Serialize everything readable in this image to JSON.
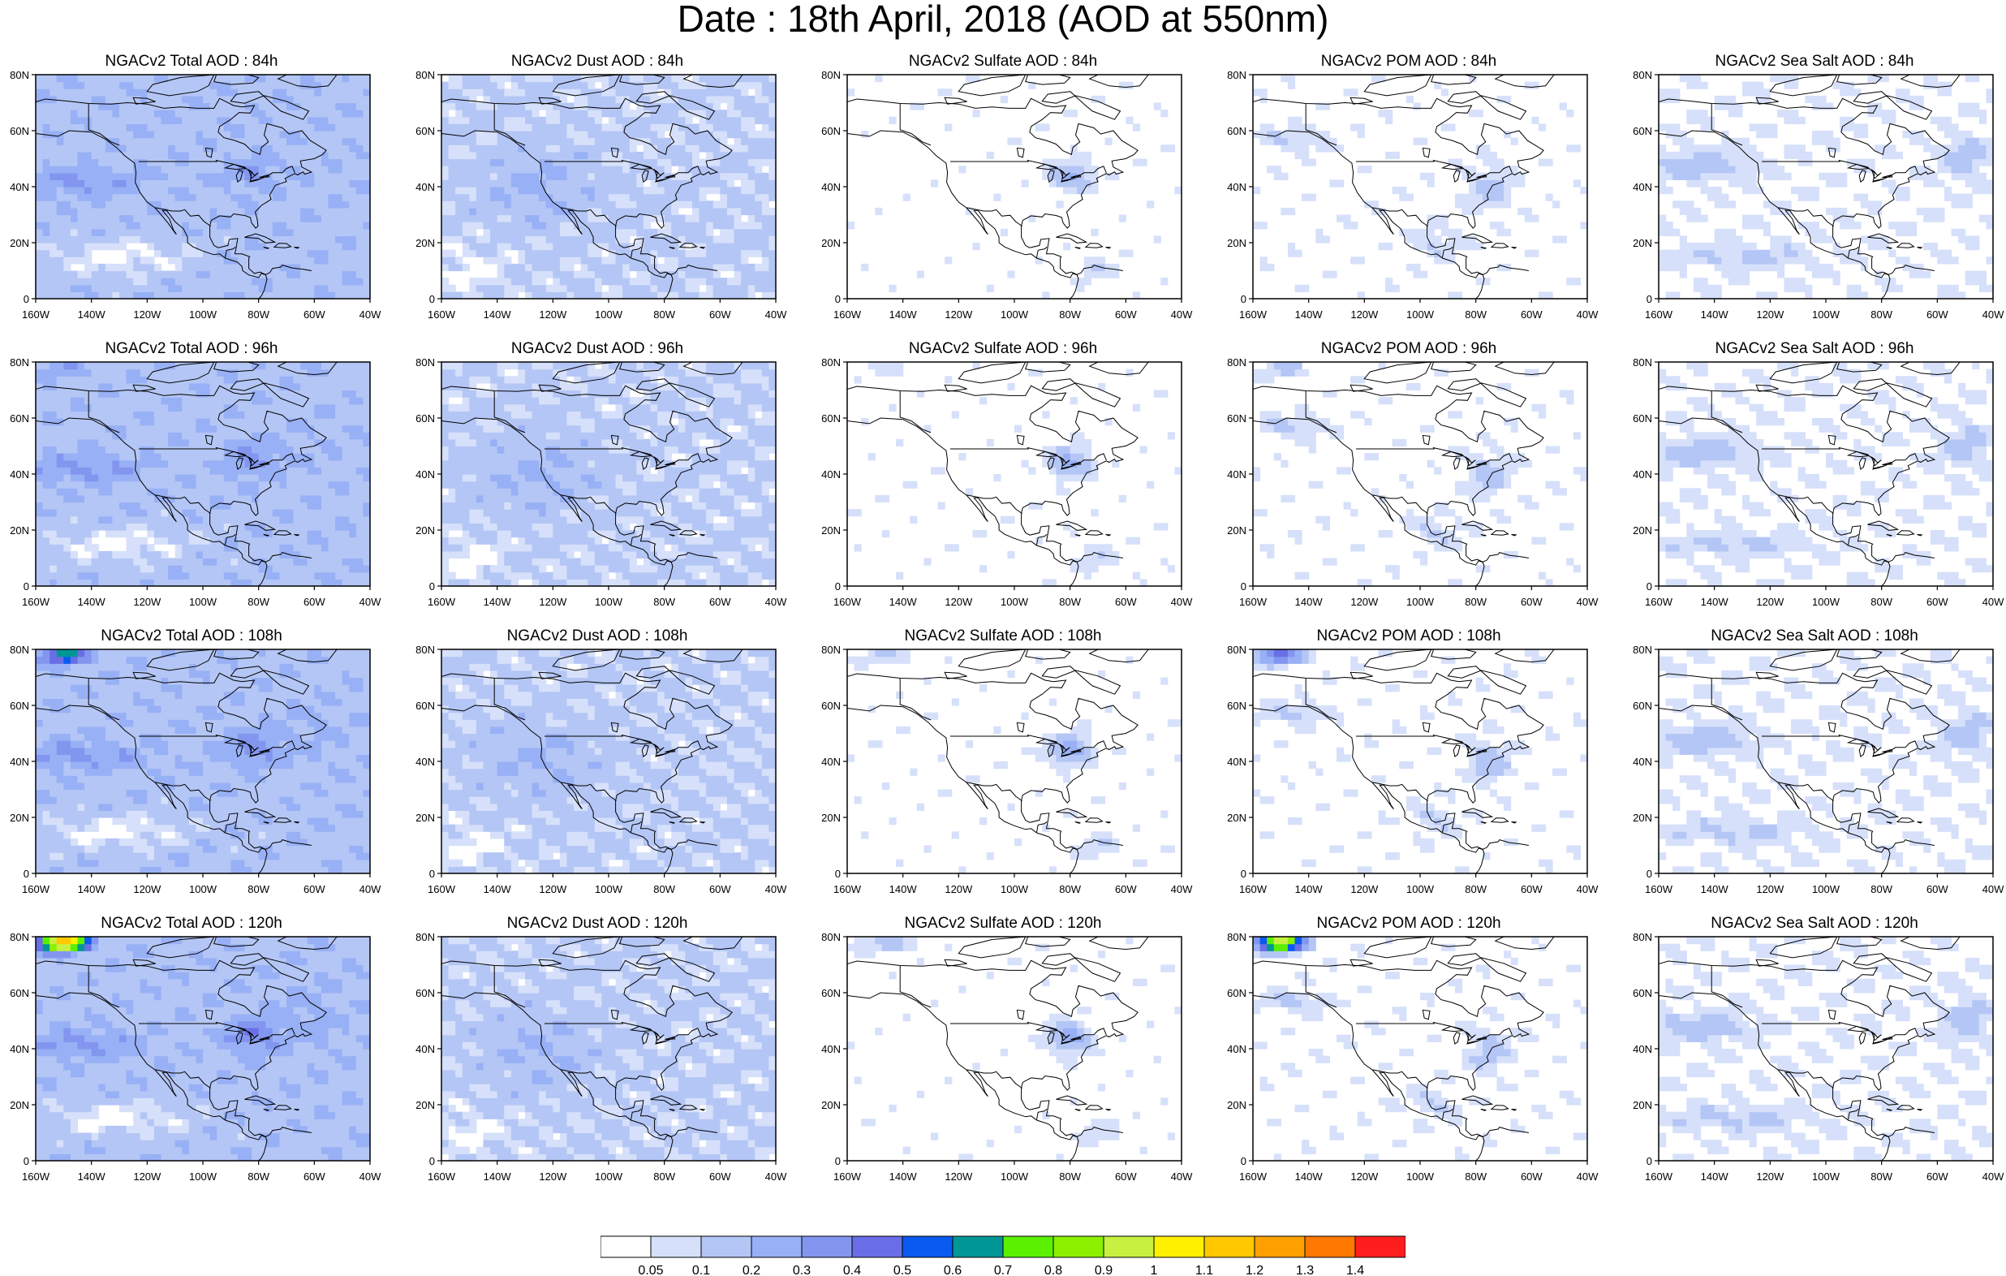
{
  "title": "Date : 18th April, 2018 (AOD at 550nm)",
  "axes": {
    "x_ticks": [
      "160W",
      "140W",
      "120W",
      "100W",
      "80W",
      "60W",
      "40W"
    ],
    "y_ticks": [
      "0",
      "20N",
      "40N",
      "60N",
      "80N"
    ],
    "lon_range": [
      -160,
      -40
    ],
    "lat_range": [
      0,
      80
    ]
  },
  "panels": [
    {
      "title": "NGACv2 Total AOD : 84h",
      "species": "total",
      "hour": 84
    },
    {
      "title": "NGACv2 Dust AOD : 84h",
      "species": "dust",
      "hour": 84
    },
    {
      "title": "NGACv2 Sulfate AOD : 84h",
      "species": "sulfate",
      "hour": 84
    },
    {
      "title": "NGACv2 POM AOD : 84h",
      "species": "pom",
      "hour": 84
    },
    {
      "title": "NGACv2 Sea Salt AOD : 84h",
      "species": "seasalt",
      "hour": 84
    },
    {
      "title": "NGACv2 Total AOD : 96h",
      "species": "total",
      "hour": 96
    },
    {
      "title": "NGACv2 Dust AOD : 96h",
      "species": "dust",
      "hour": 96
    },
    {
      "title": "NGACv2 Sulfate AOD : 96h",
      "species": "sulfate",
      "hour": 96
    },
    {
      "title": "NGACv2 POM AOD : 96h",
      "species": "pom",
      "hour": 96
    },
    {
      "title": "NGACv2 Sea Salt AOD : 96h",
      "species": "seasalt",
      "hour": 96
    },
    {
      "title": "NGACv2 Total AOD : 108h",
      "species": "total",
      "hour": 108
    },
    {
      "title": "NGACv2 Dust AOD : 108h",
      "species": "dust",
      "hour": 108
    },
    {
      "title": "NGACv2 Sulfate AOD : 108h",
      "species": "sulfate",
      "hour": 108
    },
    {
      "title": "NGACv2 POM AOD : 108h",
      "species": "pom",
      "hour": 108
    },
    {
      "title": "NGACv2 Sea Salt AOD : 108h",
      "species": "seasalt",
      "hour": 108
    },
    {
      "title": "NGACv2 Total AOD : 120h",
      "species": "total",
      "hour": 120
    },
    {
      "title": "NGACv2 Dust AOD : 120h",
      "species": "dust",
      "hour": 120
    },
    {
      "title": "NGACv2 Sulfate AOD : 120h",
      "species": "sulfate",
      "hour": 120
    },
    {
      "title": "NGACv2 POM AOD : 120h",
      "species": "pom",
      "hour": 120
    },
    {
      "title": "NGACv2 Sea Salt  AOD : 120h",
      "species": "seasalt",
      "hour": 120
    }
  ],
  "colorbar": {
    "labels": [
      "0.05",
      "0.1",
      "0.2",
      "0.3",
      "0.4",
      "0.5",
      "0.6",
      "0.7",
      "0.8",
      "0.9",
      "1",
      "1.1",
      "1.2",
      "1.3",
      "1.4"
    ],
    "colors": [
      "#ffffff",
      "#d6e0fa",
      "#b4c6f5",
      "#98b0f5",
      "#8296f0",
      "#6a6ee6",
      "#0a5af0",
      "#009696",
      "#5af000",
      "#8cf000",
      "#c8f040",
      "#fff000",
      "#ffc800",
      "#ffa000",
      "#ff7800",
      "#ff1e1e"
    ]
  },
  "chart_data": {
    "type": "heatmap",
    "title": "Date : 18th April, 2018 (AOD at 550nm)",
    "xlim": [
      -160,
      -40
    ],
    "ylim": [
      0,
      80
    ],
    "levels": [
      0.05,
      0.1,
      0.2,
      0.3,
      0.4,
      0.5,
      0.6,
      0.7,
      0.8,
      0.9,
      1,
      1.1,
      1.2,
      1.3,
      1.4
    ],
    "grid": false,
    "legend": "bottom"
  }
}
